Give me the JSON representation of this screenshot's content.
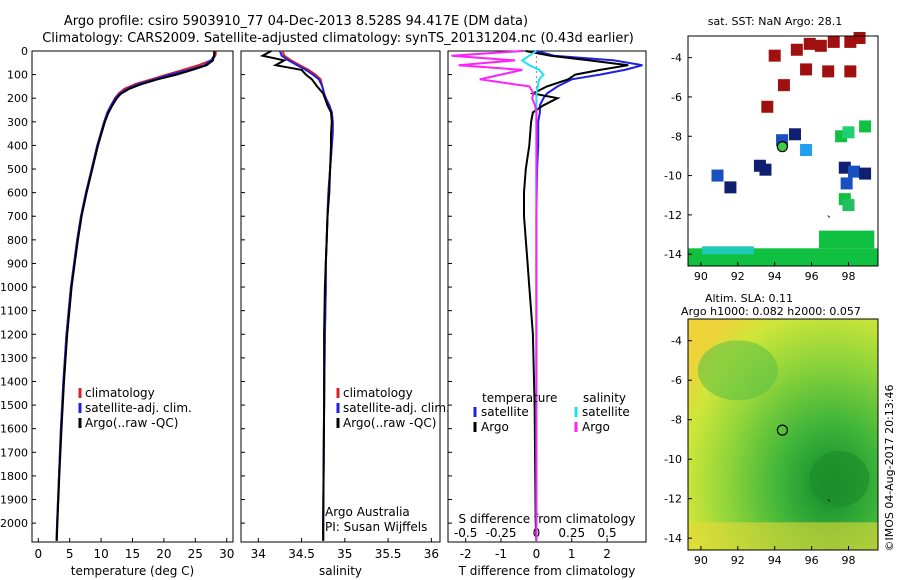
{
  "header": {
    "line1": "Argo profile: csiro 5903910_77 04-Dec-2013 8.528S 94.417E (DM data)",
    "line2": "Climatology: CARS2009. Satellite-adjusted climatology: synTS_20131204.nc (0.43d earlier)"
  },
  "colors": {
    "clim": "#e02020",
    "sat": "#2020e0",
    "argo": "#000000",
    "sat_sal": "#20e0f0",
    "argo_sal": "#ff20ff"
  },
  "chart_data": [
    {
      "type": "line",
      "name": "temperature-profile",
      "xlabel": "temperature (deg C)",
      "xlim": [
        -1,
        31
      ],
      "xticks": [
        0,
        5,
        10,
        15,
        20,
        25,
        30
      ],
      "ylim": [
        0,
        2080
      ],
      "yticks": [
        0,
        100,
        200,
        300,
        400,
        500,
        600,
        700,
        800,
        900,
        1000,
        1100,
        1200,
        1300,
        1400,
        1500,
        1600,
        1700,
        1800,
        1900,
        2000
      ],
      "depth": [
        0,
        20,
        40,
        60,
        80,
        100,
        120,
        140,
        160,
        180,
        200,
        230,
        260,
        300,
        400,
        500,
        600,
        700,
        800,
        900,
        1000,
        1200,
        1400,
        1600,
        1800,
        2000,
        2075
      ],
      "series": [
        {
          "name": "climatology",
          "color": "#e02020",
          "values": [
            28.3,
            28.2,
            27.5,
            25.5,
            23,
            20.5,
            18,
            15.5,
            13.7,
            12.8,
            12.2,
            11.6,
            11,
            10.5,
            9.4,
            8.5,
            7.6,
            6.8,
            6.2,
            5.7,
            5.2,
            4.5,
            4,
            3.6,
            3.3,
            3,
            2.9
          ]
        },
        {
          "name": "satellite-adj. clim.",
          "color": "#2020e0",
          "values": [
            28.1,
            28,
            27.5,
            26.5,
            24,
            21,
            18.5,
            16,
            14.2,
            13,
            12.3,
            11.6,
            11,
            10.5,
            9.4,
            8.5,
            7.6,
            6.8,
            6.2,
            5.7,
            5.2,
            4.5,
            4,
            3.6,
            3.3,
            3,
            2.9
          ]
        },
        {
          "name": "Argo(..raw -QC)",
          "color": "#000000",
          "values": [
            28,
            28,
            27.8,
            26.8,
            24.5,
            22,
            19,
            16.5,
            14.5,
            13.2,
            12.5,
            11.8,
            11.2,
            10.6,
            9.5,
            8.6,
            7.7,
            6.9,
            6.3,
            5.8,
            5.3,
            4.6,
            4.1,
            3.7,
            3.35,
            3.05,
            2.95
          ]
        }
      ],
      "legend": [
        "climatology",
        "satellite-adj. clim.",
        "Argo(..raw -QC)"
      ]
    },
    {
      "type": "line",
      "name": "salinity-profile",
      "xlabel": "salinity",
      "xlim": [
        33.8,
        36.1
      ],
      "xticks": [
        34,
        34.5,
        35,
        35.5,
        36
      ],
      "ylim": [
        0,
        2080
      ],
      "depth": [
        0,
        20,
        40,
        60,
        80,
        100,
        120,
        150,
        180,
        200,
        230,
        260,
        300,
        350,
        400,
        500,
        600,
        700,
        800,
        900,
        1000,
        1200,
        1500,
        2000,
        2075
      ],
      "series": [
        {
          "name": "climatology",
          "color": "#e02020",
          "values": [
            34.28,
            34.3,
            34.38,
            34.48,
            34.58,
            34.66,
            34.72,
            34.74,
            34.76,
            34.78,
            34.82,
            34.85,
            34.86,
            34.86,
            34.85,
            34.83,
            34.81,
            34.8,
            34.79,
            34.78,
            34.78,
            34.77,
            34.76,
            34.75,
            34.75
          ]
        },
        {
          "name": "satellite-adj. clim.",
          "color": "#2020e0",
          "values": [
            34.25,
            34.27,
            34.35,
            34.45,
            34.55,
            34.63,
            34.7,
            34.74,
            34.76,
            34.78,
            34.82,
            34.85,
            34.86,
            34.86,
            34.85,
            34.83,
            34.81,
            34.8,
            34.79,
            34.78,
            34.78,
            34.77,
            34.76,
            34.75,
            34.75
          ]
        },
        {
          "name": "Argo(..raw -QC)",
          "color": "#000000",
          "values": [
            34.15,
            34.05,
            34.3,
            34.2,
            34.5,
            34.55,
            34.62,
            34.68,
            34.75,
            34.77,
            34.8,
            34.84,
            34.85,
            34.84,
            34.84,
            34.83,
            34.82,
            34.8,
            34.79,
            34.78,
            34.77,
            34.76,
            34.76,
            34.75,
            34.75
          ]
        }
      ],
      "legend": [
        "climatology",
        "satellite-adj. clim.",
        "Argo(..raw -QC)"
      ],
      "credit1": "Argo Australia",
      "credit2": "PI: Susan Wijffels"
    },
    {
      "type": "line",
      "name": "difference-profile",
      "xlabel": "T difference from climatology",
      "xlabel_top": "S difference from climatology",
      "xlim": [
        -2.5,
        3.1
      ],
      "xticks": [
        -2,
        -1,
        0,
        1,
        2
      ],
      "xticks_top": [
        -0.5,
        -0.25,
        0,
        0.25,
        0.5
      ],
      "ylim": [
        0,
        2080
      ],
      "depth": [
        0,
        20,
        40,
        60,
        80,
        100,
        120,
        150,
        180,
        200,
        230,
        260,
        300,
        400,
        500,
        600,
        700,
        800,
        900,
        1000,
        1200,
        1500,
        2000,
        2075
      ],
      "series": [
        {
          "name": "temperature satellite",
          "color": "#2020e0",
          "values": [
            0,
            0.5,
            2.2,
            3.0,
            2.5,
            1.8,
            1.0,
            0.6,
            0.3,
            0.2,
            0.1,
            0.1,
            0.05,
            0.05,
            0.02,
            0.01,
            0,
            0,
            0,
            0,
            0,
            0,
            0,
            0
          ]
        },
        {
          "name": "temperature Argo",
          "color": "#000000",
          "values": [
            -0.3,
            0.4,
            1.5,
            2.6,
            1.8,
            1.1,
            0.9,
            0.3,
            -0.1,
            0.6,
            0.2,
            -0.1,
            -0.15,
            -0.2,
            -0.3,
            -0.35,
            -0.35,
            -0.3,
            -0.25,
            -0.2,
            -0.1,
            -0.05,
            -0.02,
            0
          ]
        },
        {
          "name": "salinity satellite",
          "color": "#20e0f0",
          "values": [
            0,
            -0.05,
            -0.1,
            -0.05,
            0.02,
            0.05,
            0.02,
            0.01,
            0,
            0,
            0,
            0,
            0,
            0,
            0,
            0,
            0,
            0,
            0,
            0,
            0,
            0,
            0,
            0
          ]
        },
        {
          "name": "salinity Argo",
          "color": "#ff20ff",
          "values": [
            -0.1,
            -0.6,
            -0.15,
            -0.55,
            -0.1,
            -0.25,
            -0.4,
            -0.05,
            -0.02,
            -0.03,
            -0.01,
            0,
            0,
            0,
            0,
            0,
            0,
            0,
            0,
            0,
            0,
            0,
            0,
            0
          ]
        }
      ],
      "legend_titles": [
        "temperature",
        "salinity"
      ],
      "legend": [
        "satellite",
        "Argo",
        "satellite",
        "Argo"
      ]
    },
    {
      "type": "heatmap",
      "name": "sst-map",
      "title": "sat. SST: NaN Argo: 28.1",
      "xlim": [
        89.3,
        99.6
      ],
      "ylim": [
        -14.6,
        -2.9
      ],
      "xticks": [
        90,
        92,
        94,
        96,
        98
      ],
      "yticks": [
        -4,
        -6,
        -8,
        -10,
        -12,
        -14
      ],
      "argo_location": [
        94.417,
        -8.528
      ],
      "argo_sst": 28.1,
      "sat_sst": "NaN"
    },
    {
      "type": "heatmap",
      "name": "sla-map",
      "title1": "Altim. SLA: 0.11",
      "title2": "Argo h1000: 0.082 h2000: 0.057",
      "xlim": [
        89.3,
        99.6
      ],
      "ylim": [
        -14.6,
        -2.9
      ],
      "xticks": [
        90,
        92,
        94,
        96,
        98
      ],
      "yticks": [
        -4,
        -6,
        -8,
        -10,
        -12,
        -14
      ],
      "argo_location": [
        94.417,
        -8.528
      ],
      "sla": 0.11,
      "h1000": 0.082,
      "h2000": 0.057
    }
  ],
  "footer": {
    "imos": "©IMOS 04-Aug-2017 20:13:46"
  }
}
